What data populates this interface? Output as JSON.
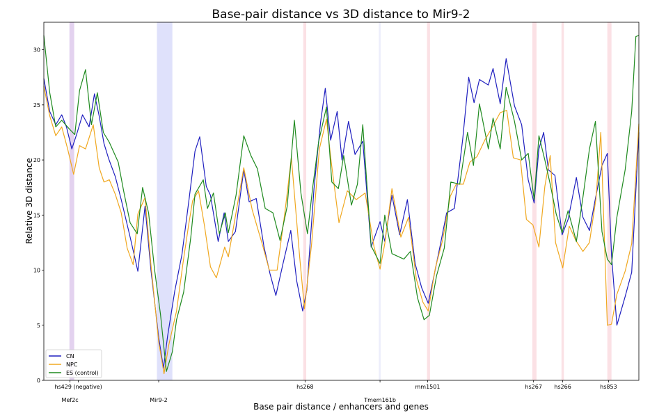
{
  "chart_data": {
    "type": "line",
    "title": "Base-pair distance vs 3D distance to Mir9-2",
    "xlabel": "Base pair distance / enhancers and genes",
    "ylabel": "Relative 3D distance",
    "xlim": [
      0,
      100
    ],
    "ylim": [
      0,
      32.5
    ],
    "y_ticks": [
      0,
      5,
      10,
      15,
      20,
      25,
      30
    ],
    "grid": false,
    "legend_position": "bottom-left",
    "x_labels_top": [
      {
        "label": "hs429 (negative)",
        "x": 5.8
      },
      {
        "label": "hs268",
        "x": 43.9
      },
      {
        "label": "mm1501",
        "x": 64.5
      },
      {
        "label": "hs267",
        "x": 82.3
      },
      {
        "label": "hs266",
        "x": 87.2
      },
      {
        "label": "hs853",
        "x": 94.9
      }
    ],
    "x_labels_bottom": [
      {
        "label": "Mef2c",
        "x": 4.4
      },
      {
        "label": "Mir9-2",
        "x": 19.3
      },
      {
        "label": "Tmem161b",
        "x": 56.5
      }
    ],
    "highlight_regions": [
      {
        "x": [
          4.3,
          5.1
        ],
        "color": "#b88fd6"
      },
      {
        "x": [
          19.0,
          21.6
        ],
        "color": "#aeb4f5"
      },
      {
        "x": [
          43.6,
          44.1
        ],
        "color": "#f5b5bd"
      },
      {
        "x": [
          56.3,
          56.6
        ],
        "color": "#cfd2f5"
      },
      {
        "x": [
          64.4,
          64.9
        ],
        "color": "#f5b5bd"
      },
      {
        "x": [
          82.1,
          82.8
        ],
        "color": "#f5b5bd"
      },
      {
        "x": [
          87.0,
          87.4
        ],
        "color": "#f5b5bd"
      },
      {
        "x": [
          94.7,
          95.4
        ],
        "color": "#f5b5bd"
      }
    ],
    "series": [
      {
        "name": "CN",
        "color": "#1f1fbf",
        "x": [
          0,
          1,
          2,
          3,
          3.8,
          4.7,
          5.5,
          6.5,
          7.6,
          8.5,
          9.3,
          10.1,
          10.9,
          12,
          13,
          14.5,
          15.8,
          17,
          18,
          19.3,
          20.1,
          20.8,
          22,
          23.2,
          24.4,
          25.4,
          26.2,
          27.3,
          28,
          29.3,
          30.3,
          31,
          32.2,
          33.6,
          34.5,
          35.7,
          37,
          38,
          39,
          40.2,
          41.5,
          42.5,
          43.5,
          44.2,
          45.4,
          46.5,
          47.3,
          48.2,
          49.3,
          50.1,
          51.2,
          52.3,
          53.6,
          55,
          56.5,
          57.3,
          58.5,
          59.8,
          61.1,
          62.4,
          63.5,
          64.6,
          65.5,
          66.6,
          67.7,
          69,
          70.4,
          71.4,
          72.3,
          73.2,
          74.7,
          75.5,
          76.7,
          77.7,
          79.1,
          80.3,
          81.4,
          82.4,
          83.2,
          84,
          84.8,
          85.9,
          87.1,
          88.1,
          89.5,
          90.6,
          91.7,
          92.7,
          93.8,
          94.7,
          95.4,
          96.3,
          97.7,
          98.8,
          100
        ],
        "y": [
          27.4,
          24.4,
          23.2,
          24.1,
          23.0,
          21.0,
          22.3,
          24.1,
          23.0,
          26.0,
          24.0,
          21.5,
          20.1,
          18.5,
          16.4,
          13.0,
          9.9,
          15.8,
          10.0,
          3.9,
          1.1,
          4.0,
          8.1,
          11.4,
          16.4,
          20.8,
          22.1,
          17.6,
          16.8,
          12.6,
          15.2,
          12.6,
          13.5,
          19.1,
          16.2,
          16.5,
          12.1,
          9.7,
          7.7,
          10.6,
          13.6,
          9.0,
          6.3,
          8.2,
          17.4,
          23.4,
          26.5,
          21.8,
          24.4,
          20.0,
          23.5,
          20.5,
          21.7,
          12.1,
          14.4,
          12.6,
          16.8,
          13.2,
          16.4,
          10.6,
          8.4,
          7.0,
          9.3,
          12.2,
          15.2,
          15.6,
          21.9,
          27.5,
          25.2,
          27.3,
          26.8,
          28.3,
          25.1,
          29.2,
          24.9,
          23.2,
          18.2,
          16.1,
          21.0,
          22.5,
          19.1,
          18.6,
          13.2,
          14.6,
          18.4,
          14.8,
          13.6,
          16.5,
          19.5,
          20.6,
          11.4,
          5.0,
          7.6,
          9.8,
          22.5
        ]
      },
      {
        "name": "NPC",
        "color": "#f0a820",
        "x": [
          0,
          1,
          2,
          3,
          4,
          5,
          6,
          7,
          8.3,
          9.3,
          10.1,
          11,
          12,
          13,
          14,
          15,
          15.8,
          17,
          18,
          19.3,
          20.2,
          21,
          22.3,
          23.4,
          24.3,
          25,
          26,
          27,
          28,
          29,
          30.4,
          31,
          32.2,
          33.6,
          35,
          36.8,
          37.9,
          39.2,
          40.5,
          41.6,
          43,
          43.8,
          45,
          46.3,
          47.5,
          48.3,
          49.6,
          51,
          52.5,
          54,
          55.5,
          56.5,
          57.3,
          58.5,
          60,
          61.3,
          62.6,
          63.7,
          64.6,
          65.8,
          67,
          68.3,
          69.3,
          70.5,
          71.6,
          72.8,
          74.1,
          75.5,
          76.7,
          77.8,
          78.9,
          80.1,
          81.1,
          82.2,
          83.2,
          84.2,
          85.1,
          86,
          87.2,
          88.3,
          89.4,
          90.6,
          91.7,
          92.8,
          93.6,
          94.7,
          95.4,
          96.3,
          97.7,
          98.8,
          100
        ],
        "y": [
          26.7,
          24.0,
          22.2,
          23.0,
          21.0,
          18.7,
          21.3,
          21.0,
          23.2,
          19.3,
          18.0,
          18.2,
          16.9,
          15.2,
          12.0,
          10.5,
          15.1,
          16.6,
          10.5,
          3.5,
          0.6,
          3.2,
          6.3,
          10.7,
          14.0,
          16.3,
          17.2,
          14.0,
          10.3,
          9.3,
          12.1,
          11.2,
          14.9,
          19.3,
          15.5,
          12.2,
          10.0,
          10.0,
          15.2,
          20.2,
          11.2,
          6.5,
          12.4,
          21.0,
          23.7,
          19.8,
          14.3,
          17.2,
          16.4,
          17.0,
          12.1,
          10.1,
          12.4,
          17.4,
          13.0,
          14.8,
          9.2,
          7.1,
          6.3,
          10.2,
          12.7,
          16.7,
          17.8,
          17.8,
          19.8,
          20.3,
          21.8,
          23.1,
          24.3,
          24.5,
          20.2,
          20.0,
          14.6,
          14.1,
          12.1,
          17.6,
          20.4,
          12.5,
          10.2,
          14.0,
          12.7,
          11.7,
          12.5,
          16.5,
          22.5,
          5.0,
          5.1,
          7.8,
          9.9,
          12.4,
          23.3
        ]
      },
      {
        "name": "ES (control)",
        "color": "#1f8a1f",
        "x": [
          0,
          1,
          2,
          3,
          4.3,
          5.2,
          6,
          7,
          8,
          9,
          10,
          11,
          12.5,
          13.4,
          14.5,
          15.7,
          16.6,
          17.6,
          18.6,
          19.6,
          20.6,
          21.6,
          22.3,
          23.5,
          24.7,
          25.4,
          26.8,
          27.5,
          28.5,
          29.5,
          30.5,
          31,
          32.3,
          33.6,
          34.8,
          35.9,
          37.2,
          38.5,
          39.7,
          40.9,
          42.1,
          43.2,
          44.3,
          45.2,
          46.2,
          47.5,
          48.4,
          49.5,
          50.4,
          51.7,
          52.7,
          53.6,
          55,
          56.5,
          57.3,
          58.5,
          60.5,
          61.6,
          62.8,
          63.9,
          64.8,
          66,
          67.3,
          68.4,
          69.9,
          71.2,
          72.2,
          73.2,
          74.7,
          75.5,
          76.7,
          77.7,
          79.1,
          80.3,
          81.4,
          82.4,
          83.2,
          84.2,
          85.1,
          86.1,
          87.1,
          88.1,
          89.5,
          90.6,
          91.7,
          92.7,
          93.8,
          94.7,
          95.4,
          96.3,
          97.7,
          98.8,
          99.5,
          100
        ],
        "y": [
          31.3,
          26.1,
          23.0,
          23.6,
          22.8,
          22.3,
          26.3,
          28.2,
          23.2,
          26.1,
          22.5,
          21.6,
          19.8,
          17.2,
          14.3,
          13.3,
          17.5,
          15.2,
          10.1,
          6.0,
          0.8,
          2.6,
          5.5,
          8.0,
          13.0,
          16.9,
          18.2,
          15.6,
          17.0,
          13.3,
          15.2,
          13.4,
          16.8,
          22.2,
          20.4,
          19.2,
          15.6,
          15.2,
          12.7,
          15.8,
          23.6,
          17.0,
          13.3,
          17.6,
          21.7,
          24.8,
          18.0,
          17.4,
          20.4,
          15.9,
          17.8,
          23.2,
          12.2,
          10.6,
          15.0,
          11.5,
          11.0,
          11.7,
          7.5,
          5.5,
          5.9,
          9.5,
          12.0,
          18.0,
          17.8,
          22.5,
          19.5,
          25.1,
          21.0,
          23.8,
          21.0,
          26.6,
          23.5,
          20.0,
          20.6,
          16.4,
          22.2,
          20.0,
          17.8,
          15.1,
          13.4,
          15.4,
          12.6,
          16.6,
          21.0,
          23.5,
          13.5,
          11.0,
          10.5,
          14.8,
          19.1,
          24.4,
          31.2,
          31.3
        ]
      }
    ]
  }
}
